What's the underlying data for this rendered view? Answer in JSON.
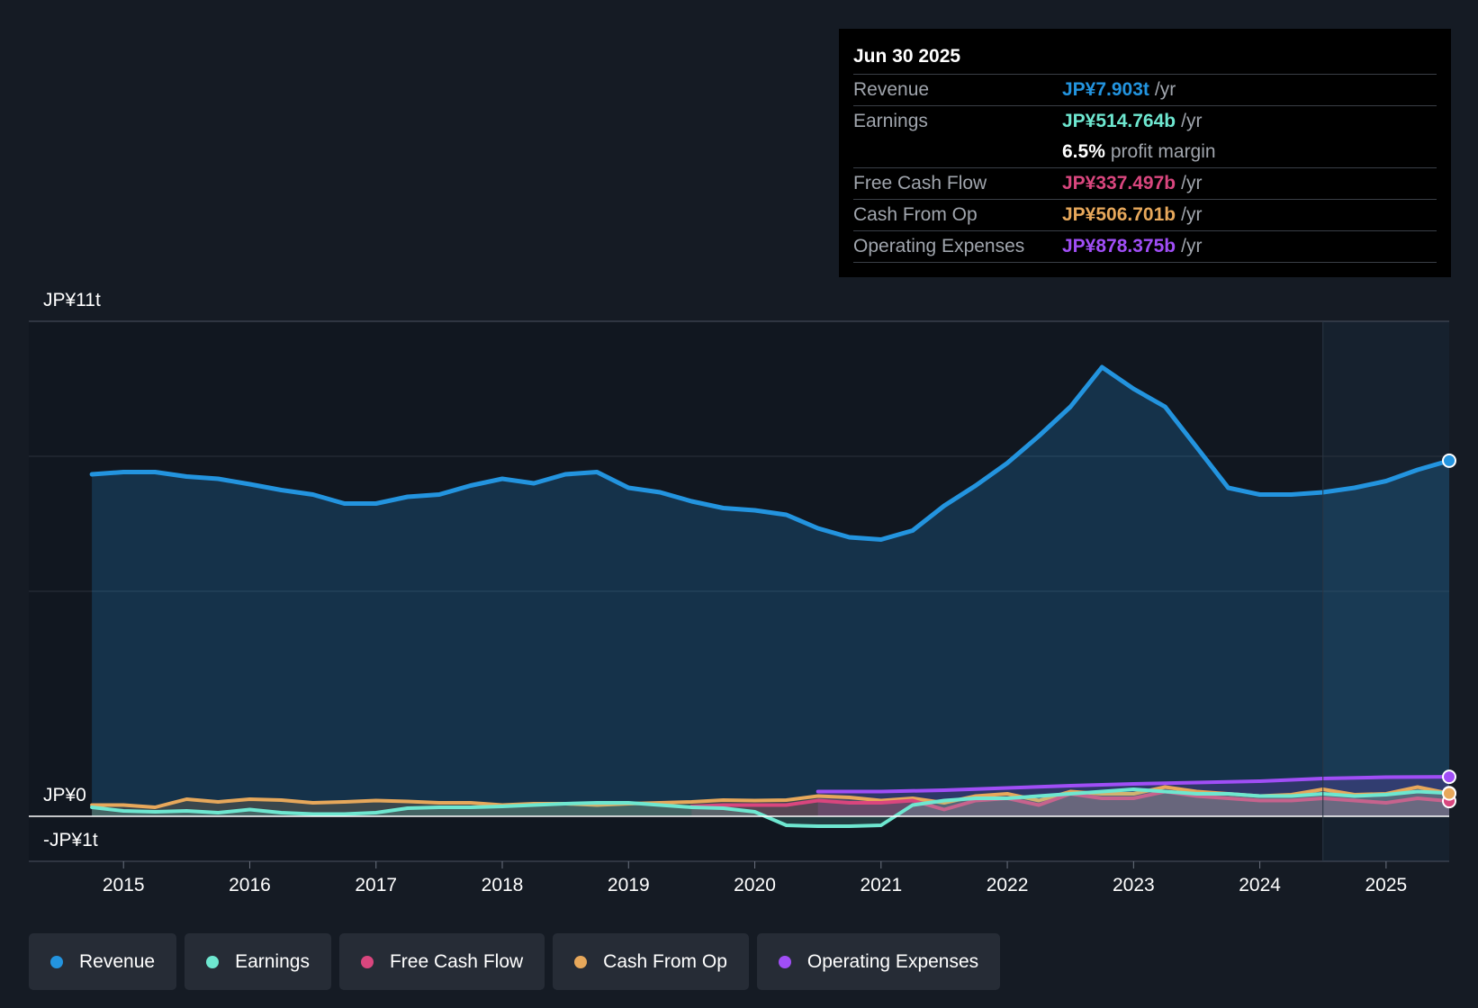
{
  "colors": {
    "background": "#151b24",
    "revenue": "#2394df",
    "earnings": "#6ee7d0",
    "fcf": "#d9467e",
    "cfo": "#e7a85b",
    "opex": "#a04ef6"
  },
  "tooltip": {
    "date": "Jun 30 2025",
    "rows": [
      {
        "label": "Revenue",
        "value": "JP¥7.903t",
        "unit": "/yr",
        "color": "#2394df"
      },
      {
        "label": "Earnings",
        "value": "JP¥514.764b",
        "unit": "/yr",
        "color": "#6ee7d0"
      },
      {
        "label": "",
        "value": "6.5%",
        "unit": "profit margin",
        "color": "#ffffff"
      },
      {
        "label": "Free Cash Flow",
        "value": "JP¥337.497b",
        "unit": "/yr",
        "color": "#d9467e"
      },
      {
        "label": "Cash From Op",
        "value": "JP¥506.701b",
        "unit": "/yr",
        "color": "#e7a85b"
      },
      {
        "label": "Operating Expenses",
        "value": "JP¥878.375b",
        "unit": "/yr",
        "color": "#a04ef6"
      }
    ]
  },
  "chart_data": {
    "type": "area",
    "x_unit": "year",
    "y_unit": "JP¥ trillion",
    "ylim": [
      -1,
      11
    ],
    "xlim": [
      2014.25,
      2025.5
    ],
    "y_labels": [
      "JP¥11t",
      "JP¥0",
      "-JP¥1t"
    ],
    "x_ticks": [
      "2015",
      "2016",
      "2017",
      "2018",
      "2019",
      "2020",
      "2021",
      "2022",
      "2023",
      "2024",
      "2025"
    ],
    "forecast_start": 2024.5,
    "series": [
      {
        "name": "Revenue",
        "color": "#2394df",
        "points": [
          [
            2014.75,
            7.6
          ],
          [
            2015.0,
            7.65
          ],
          [
            2015.25,
            7.65
          ],
          [
            2015.5,
            7.55
          ],
          [
            2015.75,
            7.5
          ],
          [
            2016.0,
            7.38
          ],
          [
            2016.25,
            7.25
          ],
          [
            2016.5,
            7.15
          ],
          [
            2016.75,
            6.95
          ],
          [
            2017.0,
            6.95
          ],
          [
            2017.25,
            7.1
          ],
          [
            2017.5,
            7.15
          ],
          [
            2017.75,
            7.35
          ],
          [
            2018.0,
            7.5
          ],
          [
            2018.25,
            7.4
          ],
          [
            2018.5,
            7.6
          ],
          [
            2018.75,
            7.65
          ],
          [
            2019.0,
            7.3
          ],
          [
            2019.25,
            7.2
          ],
          [
            2019.5,
            7.0
          ],
          [
            2019.75,
            6.85
          ],
          [
            2020.0,
            6.8
          ],
          [
            2020.25,
            6.7
          ],
          [
            2020.5,
            6.4
          ],
          [
            2020.75,
            6.2
          ],
          [
            2021.0,
            6.15
          ],
          [
            2021.25,
            6.35
          ],
          [
            2021.5,
            6.9
          ],
          [
            2021.75,
            7.35
          ],
          [
            2022.0,
            7.85
          ],
          [
            2022.25,
            8.45
          ],
          [
            2022.5,
            9.1
          ],
          [
            2022.75,
            9.98
          ],
          [
            2023.0,
            9.5
          ],
          [
            2023.25,
            9.1
          ],
          [
            2023.5,
            8.2
          ],
          [
            2023.75,
            7.3
          ],
          [
            2024.0,
            7.15
          ],
          [
            2024.25,
            7.15
          ],
          [
            2024.5,
            7.2
          ],
          [
            2024.75,
            7.3
          ],
          [
            2025.0,
            7.45
          ],
          [
            2025.25,
            7.7
          ],
          [
            2025.5,
            7.903
          ]
        ]
      },
      {
        "name": "Earnings",
        "color": "#6ee7d0",
        "points": [
          [
            2014.75,
            0.2
          ],
          [
            2015.0,
            0.12
          ],
          [
            2015.25,
            0.1
          ],
          [
            2015.5,
            0.12
          ],
          [
            2015.75,
            0.08
          ],
          [
            2016.0,
            0.15
          ],
          [
            2016.25,
            0.08
          ],
          [
            2016.5,
            0.05
          ],
          [
            2016.75,
            0.05
          ],
          [
            2017.0,
            0.08
          ],
          [
            2017.25,
            0.18
          ],
          [
            2017.5,
            0.2
          ],
          [
            2017.75,
            0.2
          ],
          [
            2018.0,
            0.22
          ],
          [
            2018.25,
            0.25
          ],
          [
            2018.5,
            0.28
          ],
          [
            2018.75,
            0.3
          ],
          [
            2019.0,
            0.3
          ],
          [
            2019.25,
            0.25
          ],
          [
            2019.5,
            0.2
          ],
          [
            2019.75,
            0.18
          ],
          [
            2020.0,
            0.1
          ],
          [
            2020.25,
            -0.2
          ],
          [
            2020.5,
            -0.22
          ],
          [
            2020.75,
            -0.22
          ],
          [
            2021.0,
            -0.2
          ],
          [
            2021.25,
            0.25
          ],
          [
            2021.5,
            0.35
          ],
          [
            2021.75,
            0.4
          ],
          [
            2022.0,
            0.4
          ],
          [
            2022.25,
            0.45
          ],
          [
            2022.5,
            0.5
          ],
          [
            2022.75,
            0.55
          ],
          [
            2023.0,
            0.6
          ],
          [
            2023.25,
            0.55
          ],
          [
            2023.5,
            0.5
          ],
          [
            2023.75,
            0.5
          ],
          [
            2024.0,
            0.45
          ],
          [
            2024.25,
            0.45
          ],
          [
            2024.5,
            0.5
          ],
          [
            2024.75,
            0.45
          ],
          [
            2025.0,
            0.48
          ],
          [
            2025.25,
            0.55
          ],
          [
            2025.5,
            0.515
          ]
        ]
      },
      {
        "name": "Free Cash Flow",
        "color": "#d9467e",
        "points": [
          [
            2019.5,
            0.22
          ],
          [
            2019.75,
            0.25
          ],
          [
            2020.0,
            0.25
          ],
          [
            2020.25,
            0.25
          ],
          [
            2020.5,
            0.35
          ],
          [
            2020.75,
            0.3
          ],
          [
            2021.0,
            0.3
          ],
          [
            2021.25,
            0.35
          ],
          [
            2021.5,
            0.15
          ],
          [
            2021.75,
            0.35
          ],
          [
            2022.0,
            0.4
          ],
          [
            2022.25,
            0.25
          ],
          [
            2022.5,
            0.5
          ],
          [
            2022.75,
            0.4
          ],
          [
            2023.0,
            0.4
          ],
          [
            2023.25,
            0.55
          ],
          [
            2023.5,
            0.45
          ],
          [
            2023.75,
            0.4
          ],
          [
            2024.0,
            0.35
          ],
          [
            2024.25,
            0.35
          ],
          [
            2024.5,
            0.4
          ],
          [
            2024.75,
            0.35
          ],
          [
            2025.0,
            0.3
          ],
          [
            2025.25,
            0.4
          ],
          [
            2025.5,
            0.337
          ]
        ]
      },
      {
        "name": "Cash From Op",
        "color": "#e7a85b",
        "points": [
          [
            2014.75,
            0.25
          ],
          [
            2015.0,
            0.25
          ],
          [
            2015.25,
            0.2
          ],
          [
            2015.5,
            0.38
          ],
          [
            2015.75,
            0.32
          ],
          [
            2016.0,
            0.38
          ],
          [
            2016.25,
            0.36
          ],
          [
            2016.5,
            0.3
          ],
          [
            2016.75,
            0.32
          ],
          [
            2017.0,
            0.35
          ],
          [
            2017.25,
            0.33
          ],
          [
            2017.5,
            0.3
          ],
          [
            2017.75,
            0.3
          ],
          [
            2018.0,
            0.25
          ],
          [
            2018.25,
            0.28
          ],
          [
            2018.5,
            0.28
          ],
          [
            2018.75,
            0.25
          ],
          [
            2019.0,
            0.28
          ],
          [
            2019.25,
            0.3
          ],
          [
            2019.5,
            0.32
          ],
          [
            2019.75,
            0.36
          ],
          [
            2020.0,
            0.35
          ],
          [
            2020.25,
            0.36
          ],
          [
            2020.5,
            0.45
          ],
          [
            2020.75,
            0.42
          ],
          [
            2021.0,
            0.35
          ],
          [
            2021.25,
            0.4
          ],
          [
            2021.5,
            0.3
          ],
          [
            2021.75,
            0.45
          ],
          [
            2022.0,
            0.5
          ],
          [
            2022.25,
            0.35
          ],
          [
            2022.5,
            0.55
          ],
          [
            2022.75,
            0.5
          ],
          [
            2023.0,
            0.5
          ],
          [
            2023.25,
            0.65
          ],
          [
            2023.5,
            0.55
          ],
          [
            2023.75,
            0.5
          ],
          [
            2024.0,
            0.45
          ],
          [
            2024.25,
            0.48
          ],
          [
            2024.5,
            0.6
          ],
          [
            2024.75,
            0.48
          ],
          [
            2025.0,
            0.5
          ],
          [
            2025.25,
            0.65
          ],
          [
            2025.5,
            0.507
          ]
        ]
      },
      {
        "name": "Operating Expenses",
        "color": "#a04ef6",
        "points": [
          [
            2020.5,
            0.55
          ],
          [
            2021.0,
            0.55
          ],
          [
            2021.5,
            0.58
          ],
          [
            2022.0,
            0.63
          ],
          [
            2022.5,
            0.68
          ],
          [
            2023.0,
            0.72
          ],
          [
            2023.5,
            0.75
          ],
          [
            2024.0,
            0.78
          ],
          [
            2024.5,
            0.84
          ],
          [
            2025.0,
            0.87
          ],
          [
            2025.5,
            0.878
          ]
        ]
      }
    ]
  },
  "legend": [
    {
      "label": "Revenue",
      "color": "#2394df"
    },
    {
      "label": "Earnings",
      "color": "#6ee7d0"
    },
    {
      "label": "Free Cash Flow",
      "color": "#d9467e"
    },
    {
      "label": "Cash From Op",
      "color": "#e7a85b"
    },
    {
      "label": "Operating Expenses",
      "color": "#a04ef6"
    }
  ]
}
